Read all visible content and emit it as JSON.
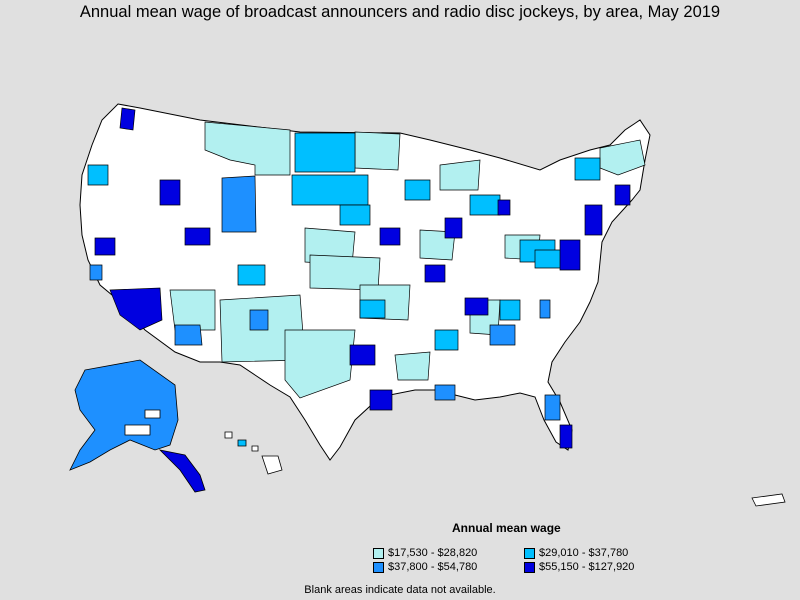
{
  "title": "Annual mean wage of broadcast announcers and radio disc jockeys, by area, May 2019",
  "legend": {
    "title": "Annual mean wage",
    "items": [
      {
        "label": "$17,530 - $28,820",
        "color": "#b2f0f0"
      },
      {
        "label": "$29,010 - $37,780",
        "color": "#00bfff"
      },
      {
        "label": "$37,800 - $54,780",
        "color": "#1e90ff"
      },
      {
        "label": "$55,150 - $127,920",
        "color": "#0000e0"
      }
    ]
  },
  "footnote": "Blank areas indicate data not available.",
  "colors": {
    "background": "#e0e0e0",
    "no_data": "#ffffff",
    "border": "#000000"
  }
}
